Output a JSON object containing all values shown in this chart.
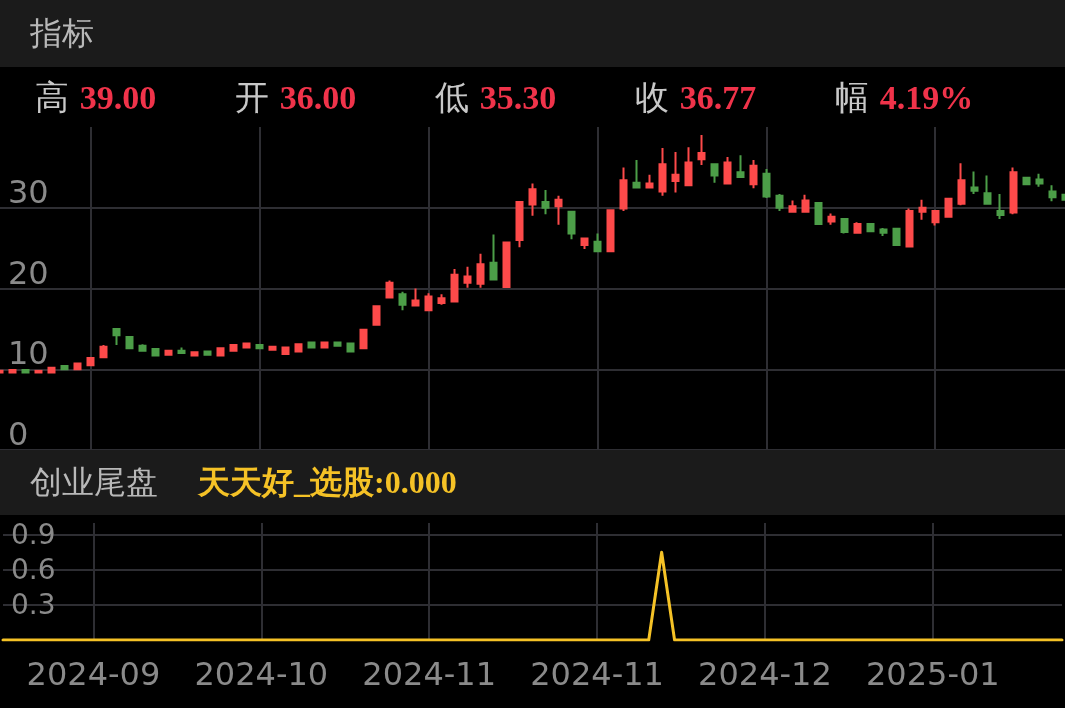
{
  "chart_data": [
    {
      "type": "candlestick",
      "title": "指标",
      "annotations": [
        "高 39.00",
        "开 36.00",
        "低 35.30",
        "收 36.77",
        "幅 4.19%"
      ],
      "categories": [
        null,
        null,
        null,
        null,
        null,
        null,
        null,
        "2024-09",
        null,
        null,
        null,
        null,
        null,
        null,
        null,
        null,
        null,
        null,
        null,
        null,
        "2024-10",
        null,
        null,
        null,
        null,
        null,
        null,
        null,
        null,
        null,
        null,
        null,
        null,
        "2024-11",
        null,
        null,
        null,
        null,
        null,
        null,
        null,
        null,
        null,
        null,
        null,
        null,
        "2024-11",
        null,
        null,
        null,
        null,
        null,
        null,
        null,
        null,
        null,
        null,
        null,
        null,
        "2024-12",
        null,
        null,
        null,
        null,
        null,
        null,
        null,
        null,
        null,
        null,
        null,
        null,
        "2025-01",
        null,
        null,
        null,
        null,
        null,
        null,
        null,
        null,
        null,
        null
      ],
      "ohlc": [
        [
          9.6,
          9.9,
          9.5,
          9.8
        ],
        [
          9.6,
          9.9,
          9.6,
          9.9
        ],
        [
          9.9,
          9.9,
          9.6,
          9.6
        ],
        [
          9.6,
          9.8,
          9.6,
          9.8
        ],
        [
          9.6,
          10.2,
          9.6,
          10.2
        ],
        [
          10.4,
          10.4,
          10.0,
          10.0
        ],
        [
          10.0,
          10.7,
          10.0,
          10.7
        ],
        [
          10.5,
          11.4,
          10.5,
          11.4
        ],
        [
          11.5,
          13.0,
          11.5,
          12.8
        ],
        [
          15.0,
          15.0,
          13.0,
          14.2
        ],
        [
          14.0,
          14.0,
          12.6,
          12.6
        ],
        [
          12.9,
          13.1,
          12.3,
          12.3
        ],
        [
          12.5,
          12.5,
          11.7,
          11.7
        ],
        [
          11.8,
          12.3,
          11.8,
          12.3
        ],
        [
          12.3,
          12.7,
          12.0,
          12.0
        ],
        [
          11.7,
          12.1,
          11.7,
          12.1
        ],
        [
          12.2,
          12.2,
          11.8,
          11.8
        ],
        [
          11.7,
          12.6,
          11.7,
          12.6
        ],
        [
          12.3,
          13.0,
          12.3,
          13.0
        ],
        [
          12.7,
          13.3,
          12.7,
          13.2
        ],
        [
          13.0,
          13.0,
          12.6,
          12.6
        ],
        [
          12.4,
          12.8,
          12.4,
          12.8
        ],
        [
          11.9,
          12.7,
          11.9,
          12.7
        ],
        [
          12.2,
          13.1,
          12.2,
          13.1
        ],
        [
          13.3,
          13.3,
          12.7,
          12.7
        ],
        [
          12.7,
          13.3,
          12.7,
          13.3
        ],
        [
          13.3,
          13.4,
          12.9,
          12.9
        ],
        [
          13.2,
          13.2,
          12.2,
          12.2
        ],
        [
          12.6,
          14.9,
          12.6,
          14.9
        ],
        [
          15.5,
          17.8,
          15.5,
          17.8
        ],
        [
          18.9,
          21.0,
          18.9,
          20.7
        ],
        [
          19.3,
          19.6,
          17.3,
          18.0
        ],
        [
          17.9,
          20.0,
          17.9,
          18.5
        ],
        [
          17.3,
          19.4,
          17.3,
          19.0
        ],
        [
          18.2,
          19.3,
          18.0,
          18.8
        ],
        [
          18.4,
          22.4,
          18.4,
          21.7
        ],
        [
          20.7,
          22.7,
          20.1,
          21.5
        ],
        [
          20.6,
          24.3,
          20.1,
          23.0
        ],
        [
          23.2,
          26.7,
          21.1,
          21.1
        ],
        [
          20.2,
          25.7,
          20.2,
          25.7
        ],
        [
          26.0,
          30.7,
          25.1,
          30.7
        ],
        [
          30.4,
          33.0,
          29.0,
          32.3
        ],
        [
          30.7,
          32.2,
          29.2,
          30.0
        ],
        [
          30.2,
          31.5,
          27.9,
          31.0
        ],
        [
          29.5,
          29.5,
          26.1,
          26.8
        ],
        [
          25.4,
          26.2,
          24.9,
          26.2
        ],
        [
          25.8,
          26.8,
          24.6,
          24.6
        ],
        [
          24.6,
          29.7,
          24.6,
          29.7
        ],
        [
          29.9,
          35.0,
          29.6,
          33.4
        ],
        [
          33.1,
          35.9,
          32.5,
          32.5
        ],
        [
          32.5,
          34.1,
          32.5,
          33.0
        ],
        [
          32.0,
          37.4,
          31.5,
          35.4
        ],
        [
          33.3,
          36.9,
          31.9,
          34.1
        ],
        [
          32.8,
          37.5,
          32.8,
          35.6
        ],
        [
          36.0,
          39.0,
          35.3,
          36.77
        ],
        [
          35.4,
          35.4,
          33.1,
          34.0
        ],
        [
          33.0,
          36.3,
          33.0,
          35.6
        ],
        [
          34.4,
          36.5,
          33.8,
          33.8
        ],
        [
          32.9,
          35.9,
          32.4,
          35.2
        ],
        [
          34.2,
          34.8,
          31.2,
          31.4
        ],
        [
          31.5,
          31.7,
          29.6,
          30.0
        ],
        [
          29.5,
          30.9,
          29.5,
          30.2
        ],
        [
          29.5,
          31.6,
          29.5,
          30.9
        ],
        [
          30.6,
          30.6,
          28.0,
          28.0
        ],
        [
          28.3,
          29.3,
          27.9,
          28.9
        ],
        [
          28.6,
          28.6,
          26.8,
          27.0
        ],
        [
          26.9,
          28.2,
          26.9,
          28.0
        ],
        [
          28.0,
          28.0,
          27.1,
          27.1
        ],
        [
          27.3,
          27.5,
          26.5,
          26.9
        ],
        [
          27.4,
          27.4,
          25.4,
          25.4
        ],
        [
          25.2,
          29.9,
          25.1,
          29.6
        ],
        [
          29.5,
          31.0,
          28.5,
          30.0
        ],
        [
          28.2,
          29.6,
          27.8,
          29.6
        ],
        [
          28.9,
          31.1,
          28.9,
          31.1
        ],
        [
          30.5,
          35.5,
          30.3,
          33.4
        ],
        [
          32.5,
          34.5,
          31.7,
          32.1
        ],
        [
          31.8,
          34.0,
          30.5,
          30.5
        ],
        [
          29.6,
          31.7,
          28.6,
          29.1
        ],
        [
          29.4,
          35.0,
          29.2,
          34.4
        ],
        [
          33.7,
          33.7,
          32.9,
          32.9
        ],
        [
          33.5,
          34.2,
          32.6,
          33.0
        ],
        [
          32.0,
          32.8,
          30.8,
          31.3
        ],
        [
          31.6,
          31.6,
          31.0,
          31.0
        ]
      ],
      "colors": [
        "#fd4a4a",
        "#fd4a4a",
        "#4c9e48",
        "#fd4a4a",
        "#fd4a4a",
        "#4c9e48",
        "#fd4a4a",
        "#fd4a4a",
        "#fd4a4a",
        "#4c9e48",
        "#4c9e48",
        "#4c9e48",
        "#4c9e48",
        "#fd4a4a",
        "#4c9e48",
        "#fd4a4a",
        "#4c9e48",
        "#fd4a4a",
        "#fd4a4a",
        "#fd4a4a",
        "#4c9e48",
        "#fd4a4a",
        "#fd4a4a",
        "#fd4a4a",
        "#4c9e48",
        "#fd4a4a",
        "#4c9e48",
        "#4c9e48",
        "#fd4a4a",
        "#fd4a4a",
        "#fd4a4a",
        "#4c9e48",
        "#fd4a4a",
        "#fd4a4a",
        "#fd4a4a",
        "#fd4a4a",
        "#fd4a4a",
        "#fd4a4a",
        "#4c9e48",
        "#fd4a4a",
        "#fd4a4a",
        "#fd4a4a",
        "#4c9e48",
        "#fd4a4a",
        "#4c9e48",
        "#fd4a4a",
        "#4c9e48",
        "#fd4a4a",
        "#fd4a4a",
        "#4c9e48",
        "#fd4a4a",
        "#fd4a4a",
        "#fd4a4a",
        "#fd4a4a",
        "#fd4a4a",
        "#4c9e48",
        "#fd4a4a",
        "#4c9e48",
        "#fd4a4a",
        "#4c9e48",
        "#4c9e48",
        "#fd4a4a",
        "#fd4a4a",
        "#4c9e48",
        "#fd4a4a",
        "#4c9e48",
        "#fd4a4a",
        "#4c9e48",
        "#4c9e48",
        "#4c9e48",
        "#fd4a4a",
        "#fd4a4a",
        "#fd4a4a",
        "#fd4a4a",
        "#fd4a4a",
        "#4c9e48",
        "#4c9e48",
        "#4c9e48",
        "#fd4a4a",
        "#4c9e48",
        "#4c9e48",
        "#4c9e48",
        "#4c9e48"
      ],
      "ylim": [
        0,
        40
      ],
      "yticks": [
        0,
        10,
        20,
        30
      ],
      "grid": true,
      "tick_labels": "y"
    },
    {
      "type": "line",
      "title": "创业尾盘",
      "legend": "top left",
      "marker": "none",
      "categories": [
        null,
        null,
        null,
        null,
        null,
        null,
        null,
        "2024-09",
        null,
        null,
        null,
        null,
        null,
        null,
        null,
        null,
        null,
        null,
        null,
        null,
        "2024-10",
        null,
        null,
        null,
        null,
        null,
        null,
        null,
        null,
        null,
        null,
        null,
        null,
        "2024-11",
        null,
        null,
        null,
        null,
        null,
        null,
        null,
        null,
        null,
        null,
        null,
        null,
        "2024-11",
        null,
        null,
        null,
        null,
        null,
        null,
        null,
        null,
        null,
        null,
        null,
        null,
        "2024-12",
        null,
        null,
        null,
        null,
        null,
        null,
        null,
        null,
        null,
        null,
        null,
        null,
        "2025-01",
        null,
        null,
        null,
        null,
        null,
        null,
        null,
        null,
        null,
        null
      ],
      "series": [
        {
          "name": "天天好_选股:0.000",
          "color": "#f5c226",
          "values": [
            0,
            0,
            0,
            0,
            0,
            0,
            0,
            0,
            0,
            0,
            0,
            0,
            0,
            0,
            0,
            0,
            0,
            0,
            0,
            0,
            0,
            0,
            0,
            0,
            0,
            0,
            0,
            0,
            0,
            0,
            0,
            0,
            0,
            0,
            0,
            0,
            0,
            0,
            0,
            0,
            0,
            0,
            0,
            0,
            0,
            0,
            0,
            0,
            0,
            0,
            0,
            0.75,
            0,
            0,
            0,
            0,
            0,
            0,
            0,
            0,
            0,
            0,
            0,
            0,
            0,
            0,
            0,
            0,
            0,
            0,
            0,
            0,
            0,
            0,
            0,
            0,
            0,
            0,
            0,
            0,
            0,
            0,
            0
          ]
        }
      ],
      "ylim": [
        0,
        1.0
      ],
      "yticks": [
        0.3,
        0.6,
        0.9
      ],
      "grid": true
    }
  ]
}
